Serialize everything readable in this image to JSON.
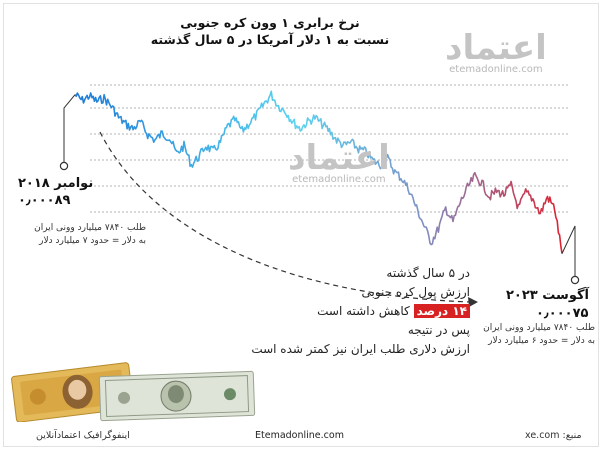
{
  "title": {
    "line1": "نرخ برابری ۱ وون کره جنوبی",
    "line2": "نسبت به ۱ دلار آمریکا در ۵ سال گذشته"
  },
  "watermark": {
    "logo_text": "اعتماد",
    "url": "etemadonline.com"
  },
  "left_label": {
    "date": "نوامبر ۲۰۱۸",
    "value": "۰٫۰۰۰۸۹",
    "note_line1": "طلب ۷۸۴۰ میلیارد وونی ایران",
    "note_line2": "به دلار = حدود ۷ میلیارد دلار"
  },
  "right_label": {
    "date": "آگوست ۲۰۲۳",
    "value": "۰٫۰۰۰۷۵",
    "note_line1": "طلب ۷۸۴۰ میلیارد وونی ایران",
    "note_line2": "به دلار = حدود ۶ میلیارد دلار"
  },
  "middle_text": {
    "line1": "در ۵ سال گذشته",
    "line2": "ارزش پول کره جنوبی",
    "line3_highlight": "۱۴ درصد",
    "line3_rest": "کاهش داشته است",
    "line4": "پس در نتیجه",
    "line5": "ارزش دلاری طلب ایران نیز کمتر شده است"
  },
  "footer": {
    "credit": "اینفوگرافیک اعتمادآنلاین",
    "site": "Etemadonline.com",
    "source": "منبع: xe.com"
  },
  "colors": {
    "line_start": "#1e7ad6",
    "line_mid": "#5bd3ef",
    "line_end": "#e01f2d",
    "highlight": "#d82121"
  },
  "chart_data": {
    "type": "line",
    "title": "نرخ برابری ۱ وون کره جنوبی نسبت به ۱ دلار آمریکا در ۵ سال گذشته",
    "xlabel": "",
    "ylabel": "",
    "x_range": [
      "نوامبر ۲۰۱۸",
      "آگوست ۲۰۲۳"
    ],
    "ylim": [
      0.00074,
      0.00091
    ],
    "grid": true,
    "series": [
      {
        "values": [
          0.00089,
          0.000885,
          0.000889,
          0.000884,
          0.000887,
          0.00088,
          0.00087,
          0.000864,
          0.00086,
          0.000866,
          0.000855,
          0.00085,
          0.000856,
          0.000852,
          0.000838,
          0.000845,
          0.000828,
          0.000835,
          0.000845,
          0.00084,
          0.000848,
          0.000862,
          0.000868,
          0.000858,
          0.000865,
          0.000872,
          0.000882,
          0.00089,
          0.00088,
          0.000875,
          0.000866,
          0.00086,
          0.000866,
          0.00087,
          0.000864,
          0.000858,
          0.00085,
          0.000845,
          0.000848,
          0.000842,
          0.00084,
          0.000832,
          0.000828,
          0.000834,
          0.000822,
          0.000816,
          0.000806,
          0.00079,
          0.000775,
          0.00076,
          0.000772,
          0.00079,
          0.000778,
          0.000795,
          0.000808,
          0.000818,
          0.000812,
          0.0008,
          0.000805,
          0.000802,
          0.00081,
          0.00079,
          0.000804,
          0.000798,
          0.000785,
          0.0008,
          0.00079,
          0.00075
        ]
      }
    ]
  }
}
